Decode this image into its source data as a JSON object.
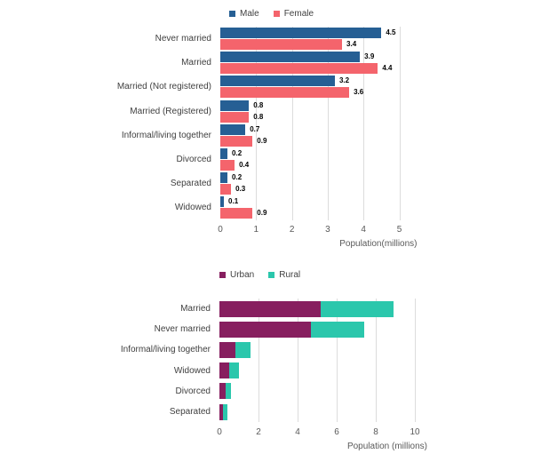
{
  "chart_data": [
    {
      "id": "marital-status-by-gender",
      "type": "bar",
      "orientation": "horizontal",
      "title": "",
      "categories": [
        "Never married",
        "Married",
        "Married (Not registered)",
        "Married (Registered)",
        "Informal/living together",
        "Divorced",
        "Separated",
        "Widowed"
      ],
      "series": [
        {
          "name": "Male",
          "color": "#265F94",
          "values": [
            4.5,
            3.9,
            3.2,
            0.8,
            0.7,
            0.2,
            0.2,
            0.1
          ]
        },
        {
          "name": "Female",
          "color": "#F4646C",
          "values": [
            3.4,
            4.4,
            3.6,
            0.8,
            0.9,
            0.4,
            0.3,
            0.9
          ]
        }
      ],
      "value_labels": true,
      "xlabel": "Population(millions)",
      "xticks": [
        0,
        1,
        2,
        3,
        4,
        5
      ],
      "xlim": [
        0,
        5
      ],
      "grid": true,
      "legend_position": "top",
      "gridline_color": "#dcdcdc"
    },
    {
      "id": "marital-status-by-geotype",
      "type": "stacked-bar",
      "orientation": "horizontal",
      "title": "",
      "categories": [
        "Married",
        "Never married",
        "Informal/living together",
        "Widowed",
        "Divorced",
        "Separated"
      ],
      "series": [
        {
          "name": "Urban",
          "color": "#871F5F",
          "values": [
            5.2,
            4.7,
            0.8,
            0.5,
            0.3,
            0.2
          ]
        },
        {
          "name": "Rural",
          "color": "#2BC7AC",
          "values": [
            3.7,
            2.7,
            0.8,
            0.5,
            0.3,
            0.2
          ]
        }
      ],
      "value_labels": false,
      "xlabel": "Population (millions)",
      "xticks": [
        0,
        2,
        4,
        6,
        8,
        10
      ],
      "xlim": [
        0,
        10
      ],
      "grid": true,
      "legend_position": "top",
      "gridline_color": "#dcdcdc"
    }
  ]
}
